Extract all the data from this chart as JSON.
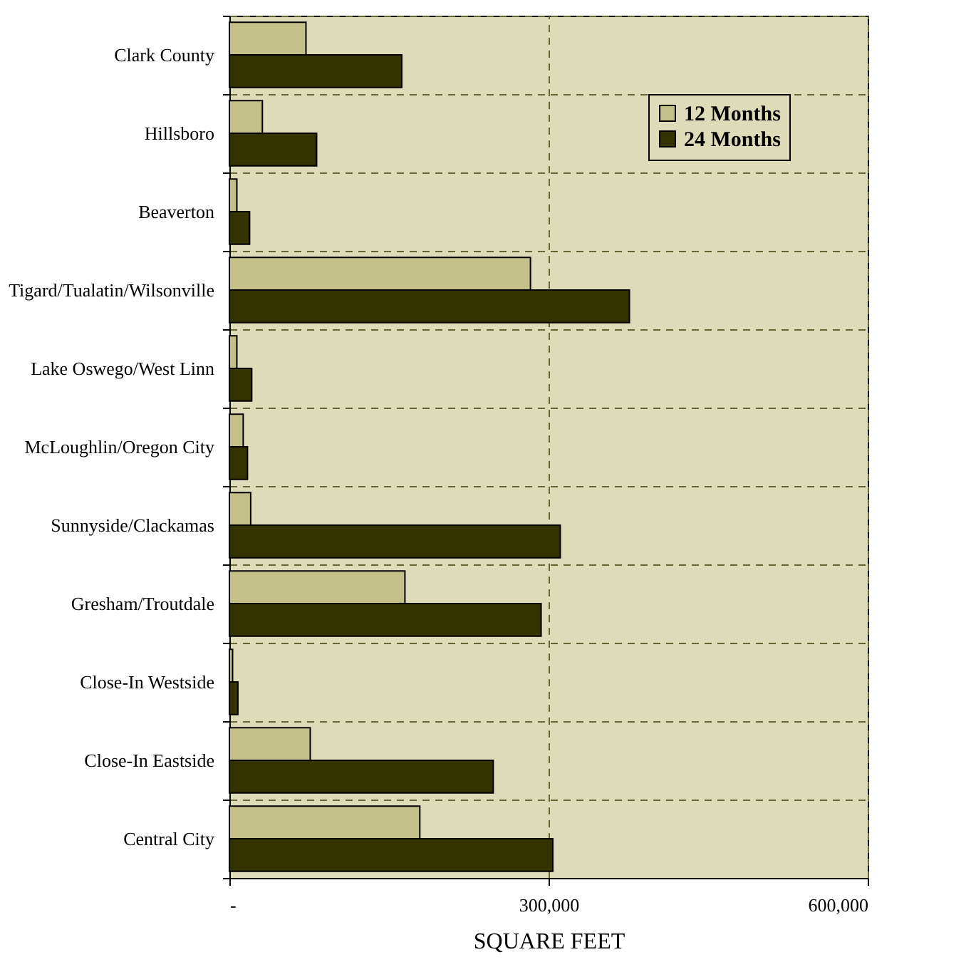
{
  "chart_data": {
    "type": "bar",
    "orientation": "horizontal",
    "xlabel": "SQUARE FEET",
    "categories": [
      "Clark County",
      "Hillsboro",
      "Beaverton",
      "Tigard/Tualatin/Wilsonville",
      "Lake Oswego/West Linn",
      "McLoughlin/Oregon City",
      "Sunnyside/Clackamas",
      "Gresham/Troutdale",
      "Close-In Westside",
      "Close-In Eastside",
      "Central City"
    ],
    "series": [
      {
        "name": "12 Months",
        "color": "#c4c08a",
        "values": [
          72000,
          31000,
          7000,
          283000,
          7000,
          13000,
          20000,
          165000,
          3000,
          76000,
          179000
        ]
      },
      {
        "name": "24 Months",
        "color": "#333300",
        "values": [
          162000,
          82000,
          19000,
          376000,
          21000,
          17000,
          311000,
          293000,
          8000,
          248000,
          304000
        ]
      }
    ],
    "xlim": [
      0,
      600000
    ],
    "xticks": [
      {
        "value": 0,
        "label": "-"
      },
      {
        "value": 300000,
        "label": "300,000"
      },
      {
        "value": 600000,
        "label": "600,000"
      }
    ],
    "grid": true,
    "legend": "top right"
  }
}
